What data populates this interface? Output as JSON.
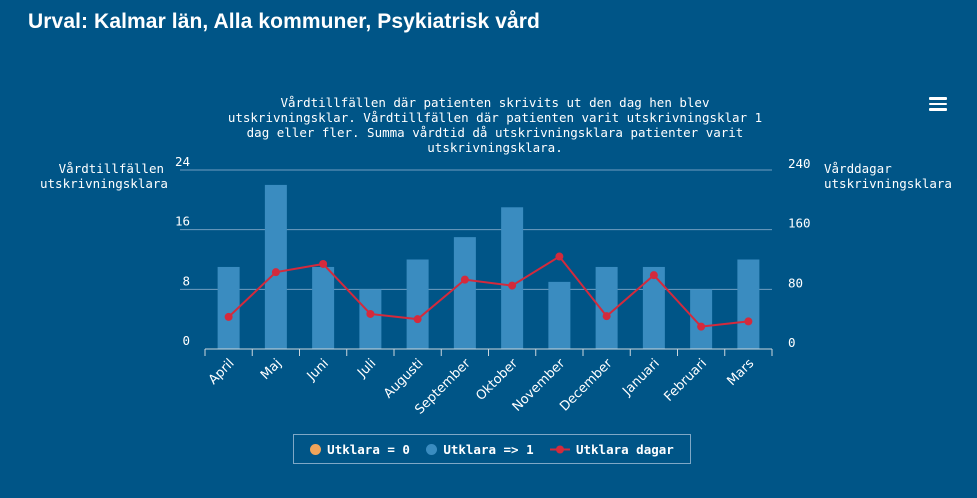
{
  "page": {
    "title": "Urval: Kalmar län, Alla kommuner, Psykiatrisk vård"
  },
  "menu": {
    "icon": "hamburger-menu-icon"
  },
  "colors": {
    "background": "#005587",
    "bars": "#3a8cc0",
    "line": "#d42a3c",
    "zero_series": "#f0a45a",
    "grid": "#6f9dc0"
  },
  "chart_data": {
    "type": "bar",
    "subtitle": "Vårdtillfällen där patienten skrivits ut den dag hen blev utskrivningsklar. Vårdtillfällen där patienten varit utskrivningsklar 1 dag eller fler. Summa vårdtid då utskrivningsklara patienter varit utskrivningsklara.",
    "ylabel": "Vårdtillfällen utskrivningsklara",
    "ylabel_right": "Vårddagar utskrivningsklara",
    "ylim": [
      0,
      24
    ],
    "ylim_right": [
      0,
      240
    ],
    "yticks": [
      "0",
      "8",
      "16",
      "24"
    ],
    "yticks_right": [
      "0",
      "80",
      "160",
      "240"
    ],
    "categories": [
      "April",
      "Maj",
      "Juni",
      "Juli",
      "Augusti",
      "September",
      "Oktober",
      "November",
      "December",
      "Januari",
      "Februari",
      "Mars"
    ],
    "series": [
      {
        "name": "Utklara = 0",
        "type": "bar",
        "axis": "left",
        "values": [
          0,
          0,
          0,
          0,
          0,
          0,
          0,
          0,
          0,
          0,
          0,
          0
        ]
      },
      {
        "name": "Utklara => 1",
        "type": "bar",
        "axis": "left",
        "values": [
          11,
          22,
          11,
          8,
          12,
          15,
          19,
          9,
          11,
          11,
          8,
          12
        ]
      },
      {
        "name": "Utklara dagar",
        "type": "line",
        "axis": "right",
        "values": [
          43,
          103,
          114,
          47,
          40,
          93,
          85,
          124,
          44,
          99,
          30,
          37
        ]
      }
    ],
    "legend": {
      "position": "bottom-center"
    },
    "grid": true
  }
}
